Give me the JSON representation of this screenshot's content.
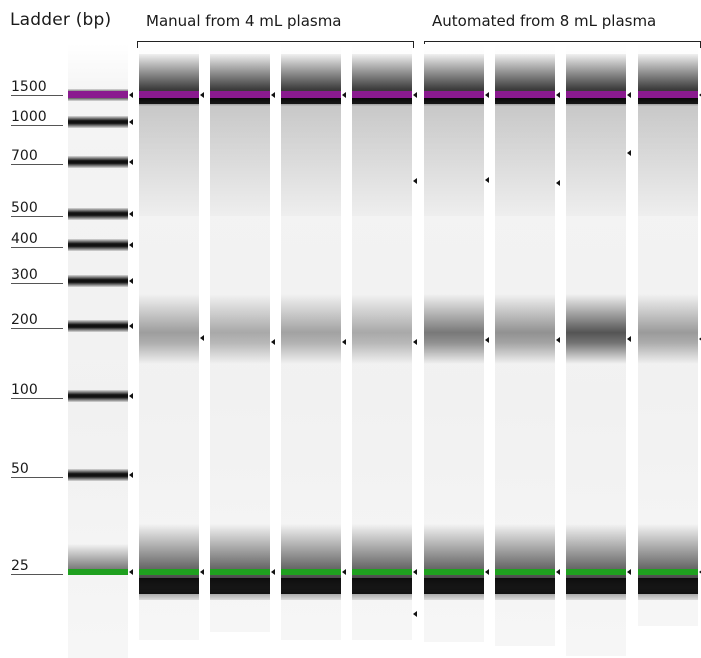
{
  "figure": {
    "ladder_title": "Ladder (bp)",
    "groups": [
      {
        "label": "Manual from 4 mL plasma"
      },
      {
        "label": "Automated from 8 mL plasma"
      }
    ],
    "ladder_sizes": [
      "1500",
      "1000",
      "700",
      "500",
      "400",
      "300",
      "200",
      "100",
      "50",
      "25"
    ],
    "colors": {
      "upper_marker": "#8a1a8f",
      "lower_marker": "#1fa01f",
      "band": "#111111",
      "background": "#ffffff"
    },
    "lane_count": 9,
    "ladder_lane_index": 0
  }
}
